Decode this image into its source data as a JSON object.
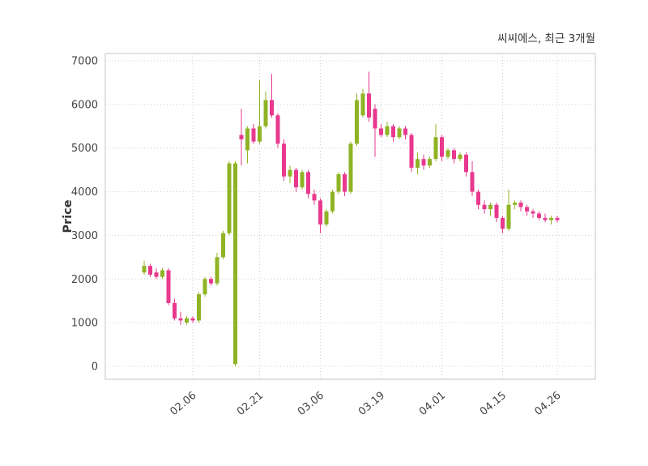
{
  "header": {
    "title": "씨씨에스, 최근 3개월"
  },
  "chart_data": {
    "type": "candlestick",
    "title": "씨씨에스, 최근 3개월",
    "xlabel": "",
    "ylabel": "Price",
    "ylim": [
      0,
      7000
    ],
    "y_ticks": [
      0,
      1000,
      2000,
      3000,
      4000,
      5000,
      6000,
      7000
    ],
    "x_tick_labels": [
      "02.06",
      "02.21",
      "03.06",
      "03.19",
      "04.01",
      "04.15",
      "04.26"
    ],
    "x_tick_indices": [
      8,
      19,
      29,
      39,
      49,
      59,
      68
    ],
    "grid": true,
    "grid_style": "dotted",
    "up_color": "#8fb324",
    "down_color": "#e8398f",
    "axis_color": "#c4c4c4",
    "grid_color": "#cccccc",
    "text_color": "#444444",
    "candles": [
      [
        2150,
        2420,
        2100,
        2300
      ],
      [
        2300,
        2350,
        2050,
        2100
      ],
      [
        2150,
        2250,
        2000,
        2050
      ],
      [
        2050,
        2250,
        2000,
        2200
      ],
      [
        2200,
        2250,
        1400,
        1450
      ],
      [
        1450,
        1550,
        1050,
        1100
      ],
      [
        1100,
        1250,
        950,
        1050
      ],
      [
        1000,
        1150,
        950,
        1100
      ],
      [
        1100,
        1150,
        1000,
        1050
      ],
      [
        1050,
        1700,
        1000,
        1650
      ],
      [
        1650,
        2050,
        1600,
        2000
      ],
      [
        2000,
        2050,
        1850,
        1900
      ],
      [
        1900,
        2600,
        1850,
        2500
      ],
      [
        2500,
        3100,
        2450,
        3050
      ],
      [
        3050,
        4700,
        3000,
        4650
      ],
      [
        50,
        4700,
        0,
        4650
      ],
      [
        5300,
        5900,
        4600,
        5200
      ],
      [
        4950,
        5500,
        4650,
        5450
      ],
      [
        5450,
        5550,
        5100,
        5150
      ],
      [
        5150,
        6550,
        5100,
        5500
      ],
      [
        5500,
        6300,
        5450,
        6100
      ],
      [
        6100,
        6700,
        5700,
        5750
      ],
      [
        5750,
        5800,
        5000,
        5100
      ],
      [
        5100,
        5200,
        4250,
        4350
      ],
      [
        4350,
        4600,
        4200,
        4500
      ],
      [
        4500,
        4550,
        4000,
        4100
      ],
      [
        4100,
        4500,
        4050,
        4450
      ],
      [
        4450,
        4500,
        3850,
        3950
      ],
      [
        3950,
        4050,
        3700,
        3800
      ],
      [
        3800,
        3850,
        3050,
        3250
      ],
      [
        3250,
        3600,
        3200,
        3550
      ],
      [
        3550,
        4050,
        3500,
        4000
      ],
      [
        4000,
        4450,
        3950,
        4400
      ],
      [
        4400,
        4450,
        3900,
        4000
      ],
      [
        4000,
        5150,
        3950,
        5100
      ],
      [
        5100,
        6250,
        5050,
        6100
      ],
      [
        5750,
        6350,
        5700,
        6250
      ],
      [
        6250,
        6750,
        5600,
        5700
      ],
      [
        5900,
        6000,
        4800,
        5450
      ],
      [
        5450,
        5550,
        5250,
        5300
      ],
      [
        5300,
        5600,
        5250,
        5500
      ],
      [
        5500,
        5550,
        5150,
        5250
      ],
      [
        5250,
        5500,
        5200,
        5450
      ],
      [
        5450,
        5500,
        5200,
        5300
      ],
      [
        5300,
        5350,
        4450,
        4550
      ],
      [
        4550,
        4900,
        4400,
        4750
      ],
      [
        4750,
        4850,
        4500,
        4600
      ],
      [
        4600,
        4800,
        4550,
        4750
      ],
      [
        4750,
        5550,
        4700,
        5250
      ],
      [
        5250,
        5300,
        4700,
        4800
      ],
      [
        4800,
        5000,
        4750,
        4950
      ],
      [
        4950,
        5000,
        4650,
        4750
      ],
      [
        4750,
        4900,
        4700,
        4850
      ],
      [
        4850,
        4900,
        4350,
        4450
      ],
      [
        4450,
        4700,
        3900,
        4000
      ],
      [
        4000,
        4050,
        3600,
        3700
      ],
      [
        3700,
        3800,
        3500,
        3600
      ],
      [
        3600,
        3750,
        3450,
        3700
      ],
      [
        3700,
        3750,
        3300,
        3400
      ],
      [
        3400,
        3450,
        3050,
        3150
      ],
      [
        3150,
        4050,
        3100,
        3700
      ],
      [
        3700,
        3800,
        3600,
        3750
      ],
      [
        3750,
        3800,
        3550,
        3650
      ],
      [
        3650,
        3700,
        3450,
        3550
      ],
      [
        3550,
        3600,
        3400,
        3500
      ],
      [
        3500,
        3550,
        3350,
        3400
      ],
      [
        3400,
        3500,
        3300,
        3350
      ],
      [
        3350,
        3450,
        3250,
        3400
      ],
      [
        3400,
        3450,
        3300,
        3350
      ]
    ]
  }
}
